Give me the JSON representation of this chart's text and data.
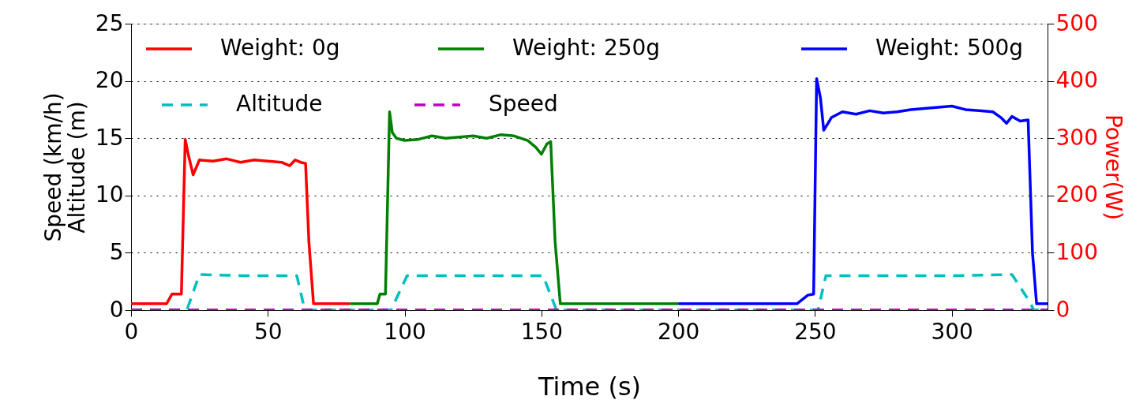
{
  "chart_data": {
    "type": "line",
    "xlabel": "Time (s)",
    "ylabel": "Speed (km/h)\nAltitude (m)",
    "y2label": "Power(W)",
    "xlim": [
      0,
      335
    ],
    "xticks": [
      0,
      50,
      100,
      150,
      200,
      250,
      300
    ],
    "ylim": [
      0,
      25
    ],
    "yticks": [
      0,
      5,
      10,
      15,
      20,
      25
    ],
    "y2lim": [
      0,
      500
    ],
    "y2ticks": [
      0,
      100,
      200,
      300,
      400,
      500
    ],
    "grid": "y",
    "legend": "top",
    "series": [
      {
        "name": "Weight: 0g",
        "color": "#ff0000",
        "axis": "y2",
        "line_style": "solid",
        "x": [
          0,
          13,
          15,
          18.4,
          19.8,
          21,
          22.7,
          25,
          30,
          35,
          40,
          45,
          50,
          55,
          58,
          60,
          62,
          63.8,
          65,
          66.7,
          70,
          80
        ],
        "values": [
          11,
          11,
          28,
          28,
          298,
          270,
          236,
          262,
          260,
          264,
          258,
          262,
          260,
          258,
          252,
          262,
          258,
          256,
          120,
          11,
          11,
          11
        ]
      },
      {
        "name": "Weight: 250g",
        "color": "#008000",
        "axis": "y2",
        "line_style": "solid",
        "x": [
          80,
          90,
          91,
          93,
          94.5,
          95.5,
          97,
          100,
          105,
          110,
          115,
          120,
          125,
          130,
          135,
          140,
          145,
          148,
          150,
          152,
          153.4,
          155,
          156.9,
          170,
          200
        ],
        "values": [
          11,
          11,
          28,
          28,
          346,
          310,
          300,
          296,
          298,
          304,
          300,
          302,
          304,
          300,
          306,
          304,
          296,
          284,
          272,
          290,
          294,
          120,
          11,
          11,
          11
        ]
      },
      {
        "name": "Weight: 500g",
        "color": "#0000ff",
        "axis": "y2",
        "line_style": "solid",
        "x": [
          200,
          243.4,
          247.4,
          249.5,
          250.6,
          252,
          253.2,
          256,
          260,
          265,
          270,
          275,
          280,
          285,
          290,
          295,
          300,
          305,
          310,
          315,
          318,
          320,
          322,
          325,
          327.9,
          329.5,
          331,
          335
        ],
        "values": [
          11,
          11,
          26,
          28,
          404,
          370,
          314,
          336,
          346,
          342,
          348,
          344,
          346,
          350,
          352,
          354,
          356,
          350,
          348,
          346,
          336,
          326,
          338,
          330,
          332,
          100,
          11,
          11
        ]
      },
      {
        "name": "Altitude",
        "color": "#00bfbf",
        "axis": "y",
        "line_style": "dashed",
        "x": [
          0,
          20.4,
          25,
          40,
          55,
          60.6,
          63.5,
          95,
          100.9,
          120,
          140,
          150.6,
          155.5,
          251.1,
          254,
          280,
          300,
          322,
          328,
          330,
          335
        ],
        "values": [
          0,
          0,
          3.1,
          3.0,
          3.0,
          3.0,
          0,
          0,
          3.0,
          3.0,
          3.0,
          3.0,
          0,
          0,
          3.0,
          3.0,
          3.0,
          3.1,
          0.9,
          0,
          0
        ]
      },
      {
        "name": "Speed",
        "color": "#bf00bf",
        "axis": "y",
        "line_style": "dashed",
        "x": [
          0,
          335
        ],
        "values": [
          0,
          0
        ]
      }
    ]
  }
}
